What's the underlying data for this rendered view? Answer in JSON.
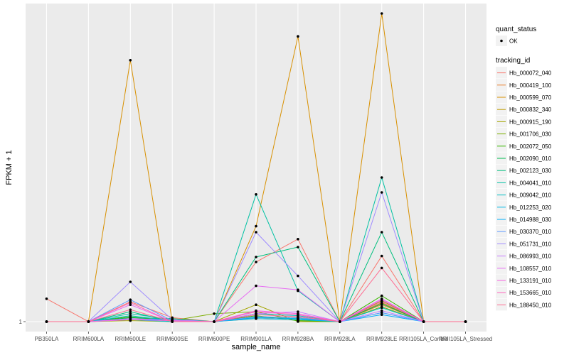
{
  "chart_data": {
    "type": "line",
    "xlabel": "sample_name",
    "ylabel": "FPKM + 1",
    "y_tick_labels": [
      "1"
    ],
    "ylim": [
      0,
      33
    ],
    "categories": [
      "PB350LA",
      "RRIM600LA",
      "RRIM600LE",
      "RRIM600SE",
      "RRIM600PE",
      "RRIM901LA",
      "RRIM928BA",
      "RRIM928LA",
      "RRIM928LE",
      "RRII105LA_Control",
      "RRII105LA_Stressed"
    ],
    "legend_quant": {
      "title": "quant_status",
      "entries": [
        "OK"
      ]
    },
    "legend_tracking": {
      "title": "tracking_id"
    },
    "grid": true,
    "series": [
      {
        "name": "Hb_000072_040",
        "color": "#F8766D",
        "values": [
          3.3,
          1.0,
          3.0,
          1.4,
          1.0,
          7.0,
          9.3,
          1.0,
          7.6,
          1.0,
          1.0
        ]
      },
      {
        "name": "Hb_000419_100",
        "color": "#EA8331",
        "values": [
          1.0,
          1.0,
          1.4,
          1.2,
          1.0,
          1.3,
          1.2,
          1.0,
          2.7,
          1.0,
          1.0
        ]
      },
      {
        "name": "Hb_000599_070",
        "color": "#D89000",
        "values": [
          1.0,
          1.0,
          27.3,
          1.0,
          1.0,
          10.6,
          29.7,
          1.0,
          32.0,
          1.0,
          1.0
        ]
      },
      {
        "name": "Hb_000832_340",
        "color": "#C09B00",
        "values": [
          1.0,
          1.0,
          1.2,
          1.1,
          1.0,
          1.5,
          1.4,
          1.0,
          2.9,
          1.0,
          1.0
        ]
      },
      {
        "name": "Hb_000915_190",
        "color": "#A3A500",
        "values": [
          1.0,
          1.0,
          1.1,
          1.0,
          1.0,
          2.7,
          1.0,
          1.0,
          3.1,
          1.0,
          1.0
        ]
      },
      {
        "name": "Hb_001706_030",
        "color": "#7CAE00",
        "values": [
          1.0,
          1.0,
          1.3,
          1.1,
          1.8,
          2.0,
          1.1,
          1.0,
          2.5,
          1.0,
          1.0
        ]
      },
      {
        "name": "Hb_002072_050",
        "color": "#39B600",
        "values": [
          1.0,
          1.0,
          1.5,
          1.0,
          1.0,
          1.6,
          1.1,
          1.0,
          3.6,
          1.0,
          1.0
        ]
      },
      {
        "name": "Hb_002090_010",
        "color": "#00BB4E",
        "values": [
          1.0,
          1.0,
          1.4,
          1.3,
          1.0,
          1.4,
          1.3,
          1.0,
          2.8,
          1.0,
          1.0
        ]
      },
      {
        "name": "Hb_002123_030",
        "color": "#00BF7D",
        "values": [
          1.0,
          1.0,
          2.0,
          1.0,
          1.0,
          7.5,
          8.5,
          1.0,
          10.0,
          1.0,
          1.0
        ]
      },
      {
        "name": "Hb_004041_010",
        "color": "#00C1A3",
        "values": [
          1.0,
          1.0,
          1.8,
          1.2,
          1.0,
          13.8,
          4.1,
          1.0,
          15.5,
          1.0,
          1.0
        ]
      },
      {
        "name": "Hb_009042_010",
        "color": "#00BFC4",
        "values": [
          1.0,
          1.0,
          1.6,
          1.1,
          1.0,
          1.8,
          1.6,
          1.0,
          2.4,
          1.0,
          1.0
        ]
      },
      {
        "name": "Hb_012253_020",
        "color": "#00B9E3",
        "values": [
          1.0,
          1.0,
          1.2,
          1.0,
          1.0,
          1.3,
          1.2,
          1.0,
          1.9,
          1.0,
          1.0
        ]
      },
      {
        "name": "Hb_014988_030",
        "color": "#00ADFA",
        "values": [
          1.0,
          1.0,
          1.3,
          1.2,
          1.0,
          1.4,
          1.3,
          1.0,
          1.7,
          1.0,
          1.0
        ]
      },
      {
        "name": "Hb_030370_010",
        "color": "#619CFF",
        "values": [
          1.0,
          1.0,
          3.2,
          1.1,
          1.0,
          1.5,
          1.4,
          1.0,
          1.9,
          1.0,
          1.0
        ]
      },
      {
        "name": "Hb_051731_010",
        "color": "#9F8CFF",
        "values": [
          1.0,
          1.0,
          5.0,
          1.2,
          1.0,
          10.0,
          5.6,
          1.0,
          14.0,
          1.0,
          1.0
        ]
      },
      {
        "name": "Hb_086993_010",
        "color": "#C77CFF",
        "values": [
          1.0,
          1.0,
          1.3,
          1.1,
          1.0,
          1.8,
          2.0,
          1.0,
          2.1,
          1.0,
          1.0
        ]
      },
      {
        "name": "Hb_108557_010",
        "color": "#E76BF3",
        "values": [
          1.0,
          1.0,
          2.7,
          1.0,
          1.0,
          4.6,
          4.2,
          1.0,
          3.3,
          1.0,
          1.0
        ]
      },
      {
        "name": "Hb_133191_010",
        "color": "#F763E0",
        "values": [
          1.0,
          1.0,
          1.2,
          1.1,
          1.0,
          2.1,
          1.8,
          1.0,
          3.2,
          1.0,
          1.0
        ]
      },
      {
        "name": "Hb_153665_010",
        "color": "#FF62BC",
        "values": [
          1.0,
          1.0,
          2.9,
          1.0,
          1.0,
          2.0,
          1.7,
          1.0,
          3.0,
          1.0,
          1.0
        ]
      },
      {
        "name": "Hb_188450_010",
        "color": "#FF6C91",
        "values": [
          1.0,
          1.0,
          2.2,
          1.0,
          1.0,
          1.7,
          1.5,
          1.0,
          6.4,
          1.0,
          1.0
        ]
      }
    ]
  }
}
